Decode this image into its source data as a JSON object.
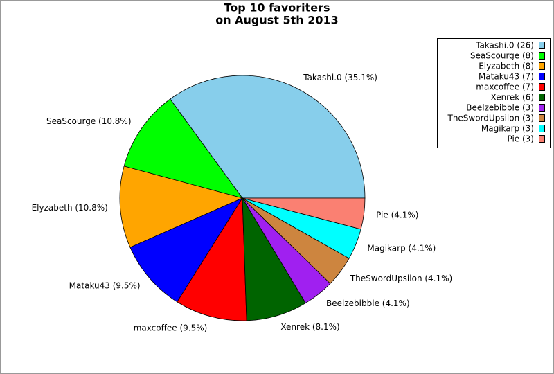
{
  "chart_data": {
    "type": "pie",
    "title": "Top 10 favoriters",
    "subtitle": "on August 5th 2013",
    "values": [
      35.1,
      10.8,
      10.8,
      9.5,
      9.5,
      8.1,
      4.1,
      4.1,
      4.1,
      4.1
    ],
    "value_labels": [
      "Takashi.0 (35.1%)",
      "SeaScourge (10.8%)",
      "Elyzabeth (10.8%)",
      "Mataku43 (9.5%)",
      "maxcoffee (9.5%)",
      "Xenrek (8.1%)",
      "Beelzebibble (4.1%)",
      "TheSwordUpsilon (4.1%)",
      "Magikarp (4.1%)",
      "Pie (4.1%)"
    ],
    "legend_labels": [
      "Takashi.0 (26)",
      "SeaScourge (8)",
      "Elyzabeth (8)",
      "Mataku43 (7)",
      "maxcoffee (7)",
      "Xenrek (6)",
      "Beelzebibble (3)",
      "TheSwordUpsilon (3)",
      "Magikarp (3)",
      "Pie (3)"
    ],
    "colors": [
      "#87ceeb",
      "#00ff00",
      "#ffa500",
      "#0000ff",
      "#ff0000",
      "#006400",
      "#a020f0",
      "#cd853f",
      "#00ffff",
      "#fa8072"
    ],
    "legend": "upper right"
  }
}
